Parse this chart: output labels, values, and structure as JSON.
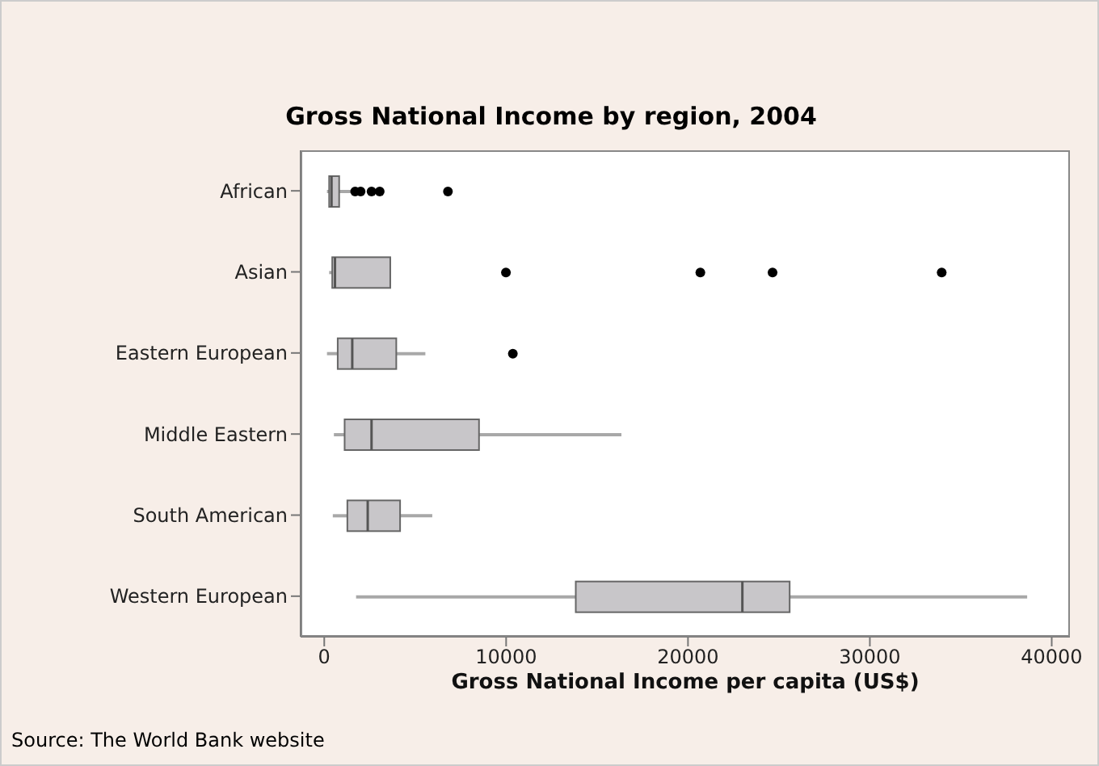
{
  "chart_data": {
    "type": "box",
    "orientation": "horizontal",
    "title": "Gross National Income by region, 2004",
    "xlabel": "Gross National Income per capita (US$)",
    "categories": [
      "African",
      "Asian",
      "Eastern European",
      "Middle Eastern",
      "South American",
      "Western European"
    ],
    "boxes": [
      {
        "low": 150,
        "q1": 270,
        "median": 400,
        "q3": 820,
        "high": 1570,
        "outliers": [
          1700,
          2000,
          2600,
          3050,
          6800
        ]
      },
      {
        "low": 270,
        "q1": 440,
        "median": 590,
        "q3": 3630,
        "high": 3630,
        "outliers": [
          9990,
          20680,
          24650,
          33950
        ]
      },
      {
        "low": 150,
        "q1": 740,
        "median": 1540,
        "q3": 3960,
        "high": 5560,
        "outliers": [
          10370
        ]
      },
      {
        "low": 530,
        "q1": 1120,
        "median": 2600,
        "q3": 8510,
        "high": 16340
      },
      {
        "low": 470,
        "q1": 1270,
        "median": 2390,
        "q3": 4170,
        "high": 5940
      },
      {
        "low": 1750,
        "q1": 13830,
        "median": 22990,
        "q3": 25590,
        "high": 38650
      }
    ],
    "color": "#c8c6c9",
    "xlim": [
      -1300,
      41000
    ],
    "xticks": [
      0,
      10000,
      20000,
      30000,
      40000
    ],
    "annotations": [
      "Source: The World Bank website"
    ]
  }
}
